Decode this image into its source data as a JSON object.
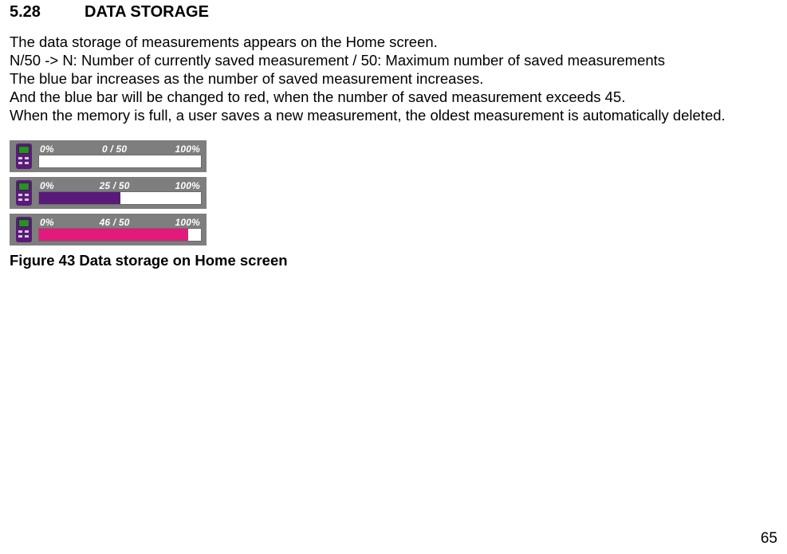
{
  "heading": {
    "number": "5.28",
    "title": "DATA STORAGE"
  },
  "paragraphs": [
    "The data storage of measurements appears on the Home screen.",
    "N/50 -> N: Number of currently saved measurement / 50: Maximum number of saved measurements",
    "The blue bar increases as the number of saved measurement increases.",
    "And the blue bar will be changed to red, when the number of saved measurement exceeds 45.",
    "When the memory is full, a user saves a new measurement, the oldest measurement is automatically deleted."
  ],
  "bars": {
    "left_label": "0%",
    "right_label": "100%",
    "track_bg": "#ffffff",
    "row_bg": "#7e7e7e",
    "text_color": "#ffffff",
    "rows": [
      {
        "center_label": "0 / 50",
        "fill_pct": 0,
        "fill_color": "#5a1a7a"
      },
      {
        "center_label": "25 / 50",
        "fill_pct": 50,
        "fill_color": "#5a1a7a"
      },
      {
        "center_label": "46 / 50",
        "fill_pct": 92,
        "fill_color": "#e3197b"
      }
    ]
  },
  "caption": "Figure 43 Data storage on Home screen",
  "page_number": "65"
}
